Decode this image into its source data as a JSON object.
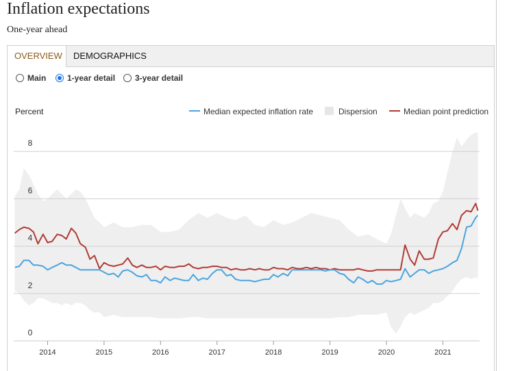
{
  "header": {
    "title": "Inflation expectations",
    "subtitle": "One-year ahead"
  },
  "tabs": [
    {
      "label": "OVERVIEW",
      "active": true
    },
    {
      "label": "DEMOGRAPHICS",
      "active": false
    }
  ],
  "view_options": [
    {
      "label": "Main",
      "checked": false
    },
    {
      "label": "1-year detail",
      "checked": true
    },
    {
      "label": "3-year detail",
      "checked": false
    }
  ],
  "colors": {
    "blue": "#4aa3df",
    "red": "#b03a33",
    "band": "#efefef"
  },
  "chart_data": {
    "type": "line",
    "title": "Inflation expectations",
    "ylabel": "Percent",
    "xlabel": "",
    "ylim": [
      0,
      8.8
    ],
    "xlim": [
      2013.4,
      2021.65
    ],
    "yticks": [
      0,
      2,
      4,
      6,
      8
    ],
    "yticklabels": [
      "0",
      "2",
      "4",
      "6",
      "8"
    ],
    "xticks": [
      2014,
      2015,
      2016,
      2017,
      2018,
      2019,
      2020,
      2021
    ],
    "xticklabels": [
      "2014",
      "2015",
      "2016",
      "2017",
      "2018",
      "2019",
      "2020",
      "2021"
    ],
    "legend": [
      "Median expected inflation rate",
      "Dispersion",
      "Median point prediction"
    ],
    "grid": true,
    "series": [
      {
        "name": "Median expected inflation rate",
        "x": [
          2013.42,
          2013.5,
          2013.58,
          2013.67,
          2013.75,
          2013.83,
          2013.92,
          2014.0,
          2014.08,
          2014.17,
          2014.25,
          2014.33,
          2014.42,
          2014.5,
          2014.58,
          2014.67,
          2014.75,
          2014.83,
          2014.92,
          2015.0,
          2015.08,
          2015.17,
          2015.25,
          2015.33,
          2015.42,
          2015.5,
          2015.58,
          2015.67,
          2015.75,
          2015.83,
          2015.92,
          2016.0,
          2016.08,
          2016.17,
          2016.25,
          2016.33,
          2016.42,
          2016.5,
          2016.58,
          2016.67,
          2016.75,
          2016.83,
          2016.92,
          2017.0,
          2017.08,
          2017.17,
          2017.25,
          2017.33,
          2017.42,
          2017.5,
          2017.58,
          2017.67,
          2017.75,
          2017.83,
          2017.92,
          2018.0,
          2018.08,
          2018.17,
          2018.25,
          2018.33,
          2018.42,
          2018.5,
          2018.58,
          2018.67,
          2018.75,
          2018.83,
          2018.92,
          2019.0,
          2019.08,
          2019.17,
          2019.25,
          2019.33,
          2019.42,
          2019.5,
          2019.58,
          2019.67,
          2019.75,
          2019.83,
          2019.92,
          2020.0,
          2020.08,
          2020.17,
          2020.25,
          2020.33,
          2020.42,
          2020.5,
          2020.58,
          2020.67,
          2020.75,
          2020.83,
          2020.92,
          2021.0,
          2021.08,
          2021.17,
          2021.25,
          2021.33,
          2021.42,
          2021.5,
          2021.58,
          2021.62
        ],
        "values": [
          3.1,
          3.15,
          3.4,
          3.4,
          3.2,
          3.2,
          3.15,
          3.0,
          3.1,
          3.2,
          3.3,
          3.2,
          3.2,
          3.1,
          3.0,
          3.0,
          3.0,
          3.0,
          3.0,
          2.9,
          2.8,
          2.85,
          2.7,
          2.95,
          3.0,
          2.9,
          2.75,
          2.7,
          2.8,
          2.55,
          2.55,
          2.45,
          2.7,
          2.55,
          2.65,
          2.6,
          2.55,
          2.55,
          2.8,
          2.55,
          2.65,
          2.6,
          2.85,
          3.0,
          3.0,
          2.75,
          2.8,
          2.6,
          2.55,
          2.55,
          2.55,
          2.5,
          2.55,
          2.6,
          2.6,
          2.8,
          2.7,
          2.85,
          2.75,
          3.0,
          3.0,
          3.0,
          3.0,
          3.0,
          3.0,
          3.0,
          2.95,
          3.0,
          3.0,
          2.85,
          2.8,
          2.6,
          2.45,
          2.7,
          2.6,
          2.45,
          2.55,
          2.4,
          2.4,
          2.55,
          2.5,
          2.55,
          2.6,
          3.05,
          2.7,
          2.85,
          3.0,
          3.0,
          2.85,
          2.95,
          3.0,
          3.05,
          3.15,
          3.3,
          3.4,
          3.9,
          4.8,
          4.85,
          5.2,
          5.3
        ]
      },
      {
        "name": "Median point prediction",
        "x": [
          2013.42,
          2013.5,
          2013.58,
          2013.67,
          2013.75,
          2013.83,
          2013.92,
          2014.0,
          2014.08,
          2014.17,
          2014.25,
          2014.33,
          2014.42,
          2014.5,
          2014.58,
          2014.67,
          2014.75,
          2014.83,
          2014.92,
          2015.0,
          2015.08,
          2015.17,
          2015.25,
          2015.33,
          2015.42,
          2015.5,
          2015.58,
          2015.67,
          2015.75,
          2015.83,
          2015.92,
          2016.0,
          2016.08,
          2016.17,
          2016.25,
          2016.33,
          2016.42,
          2016.5,
          2016.58,
          2016.67,
          2016.75,
          2016.83,
          2016.92,
          2017.0,
          2017.08,
          2017.17,
          2017.25,
          2017.33,
          2017.42,
          2017.5,
          2017.58,
          2017.67,
          2017.75,
          2017.83,
          2017.92,
          2018.0,
          2018.08,
          2018.17,
          2018.25,
          2018.33,
          2018.42,
          2018.5,
          2018.58,
          2018.67,
          2018.75,
          2018.83,
          2018.92,
          2019.0,
          2019.08,
          2019.17,
          2019.25,
          2019.33,
          2019.42,
          2019.5,
          2019.58,
          2019.67,
          2019.75,
          2019.83,
          2019.92,
          2020.0,
          2020.08,
          2020.17,
          2020.25,
          2020.33,
          2020.42,
          2020.5,
          2020.58,
          2020.67,
          2020.75,
          2020.83,
          2020.92,
          2021.0,
          2021.08,
          2021.17,
          2021.25,
          2021.33,
          2021.42,
          2021.5,
          2021.58,
          2021.62
        ],
        "values": [
          4.55,
          4.7,
          4.8,
          4.75,
          4.6,
          4.1,
          4.5,
          4.15,
          4.2,
          4.5,
          4.45,
          4.3,
          4.75,
          4.55,
          4.1,
          3.95,
          3.45,
          3.6,
          3.05,
          3.3,
          3.2,
          3.15,
          3.2,
          3.25,
          3.5,
          3.2,
          3.1,
          3.2,
          3.1,
          3.1,
          3.15,
          3.0,
          3.15,
          3.1,
          3.1,
          3.15,
          3.15,
          3.25,
          3.1,
          3.05,
          3.1,
          3.1,
          3.15,
          3.15,
          3.1,
          3.1,
          3.0,
          3.05,
          3.0,
          3.0,
          3.05,
          3.0,
          3.05,
          3.0,
          3.0,
          3.1,
          3.05,
          3.05,
          3.0,
          3.1,
          3.05,
          3.05,
          3.1,
          3.05,
          3.1,
          3.05,
          3.05,
          3.0,
          3.05,
          3.0,
          3.0,
          3.0,
          3.0,
          3.05,
          3.0,
          2.95,
          2.95,
          3.0,
          3.0,
          3.0,
          3.0,
          3.0,
          3.0,
          4.05,
          3.45,
          3.2,
          3.8,
          3.45,
          3.45,
          3.5,
          4.3,
          4.6,
          4.65,
          4.95,
          4.7,
          5.3,
          5.5,
          5.45,
          5.8,
          5.5
        ]
      },
      {
        "name": "Dispersion",
        "x": [
          2013.42,
          2013.5,
          2013.58,
          2013.67,
          2013.75,
          2013.83,
          2013.92,
          2014.0,
          2014.08,
          2014.17,
          2014.25,
          2014.33,
          2014.42,
          2014.5,
          2014.58,
          2014.67,
          2014.75,
          2014.83,
          2014.92,
          2015.0,
          2015.17,
          2015.33,
          2015.5,
          2015.67,
          2015.83,
          2016.0,
          2016.17,
          2016.33,
          2016.5,
          2016.67,
          2016.83,
          2017.0,
          2017.17,
          2017.33,
          2017.5,
          2017.67,
          2017.83,
          2018.0,
          2018.17,
          2018.33,
          2018.5,
          2018.67,
          2018.83,
          2019.0,
          2019.17,
          2019.33,
          2019.5,
          2019.67,
          2019.83,
          2020.0,
          2020.08,
          2020.17,
          2020.25,
          2020.33,
          2020.42,
          2020.5,
          2020.58,
          2020.67,
          2020.75,
          2020.83,
          2020.92,
          2021.0,
          2021.08,
          2021.17,
          2021.25,
          2021.33,
          2021.42,
          2021.5,
          2021.58,
          2021.62
        ],
        "upper": [
          6.1,
          6.4,
          7.3,
          7.0,
          6.6,
          6.2,
          5.9,
          6.0,
          6.2,
          6.4,
          6.2,
          6.0,
          6.2,
          6.4,
          6.3,
          6.0,
          5.6,
          5.2,
          5.0,
          4.8,
          5.0,
          4.8,
          4.8,
          4.9,
          4.9,
          4.6,
          4.6,
          4.7,
          5.1,
          5.4,
          5.2,
          5.4,
          5.2,
          5.1,
          5.3,
          4.9,
          4.8,
          5.1,
          4.9,
          5.0,
          5.2,
          5.4,
          5.3,
          5.2,
          5.1,
          4.7,
          4.4,
          4.5,
          4.3,
          4.1,
          4.5,
          5.3,
          6.0,
          5.6,
          5.2,
          5.4,
          5.3,
          5.2,
          5.4,
          5.8,
          5.9,
          6.3,
          7.1,
          8.0,
          8.6,
          8.2,
          8.5,
          8.7,
          8.8,
          8.8
        ],
        "lower": [
          2.1,
          2.0,
          1.7,
          1.5,
          1.6,
          1.8,
          1.8,
          1.7,
          1.6,
          1.6,
          1.5,
          1.6,
          1.5,
          1.6,
          1.6,
          1.5,
          1.3,
          1.2,
          1.2,
          1.0,
          1.1,
          1.0,
          1.0,
          1.0,
          1.0,
          0.95,
          0.95,
          0.95,
          1.0,
          1.0,
          0.95,
          0.95,
          0.95,
          0.95,
          0.95,
          0.95,
          0.95,
          0.95,
          0.95,
          0.95,
          0.95,
          0.95,
          0.95,
          0.95,
          1.0,
          1.0,
          1.1,
          1.1,
          1.1,
          1.2,
          0.6,
          0.3,
          0.6,
          1.0,
          1.2,
          1.1,
          1.2,
          1.3,
          1.4,
          1.6,
          1.6,
          1.7,
          1.9,
          2.1,
          2.4,
          2.6,
          2.7,
          2.6,
          2.7,
          2.6
        ]
      }
    ]
  }
}
